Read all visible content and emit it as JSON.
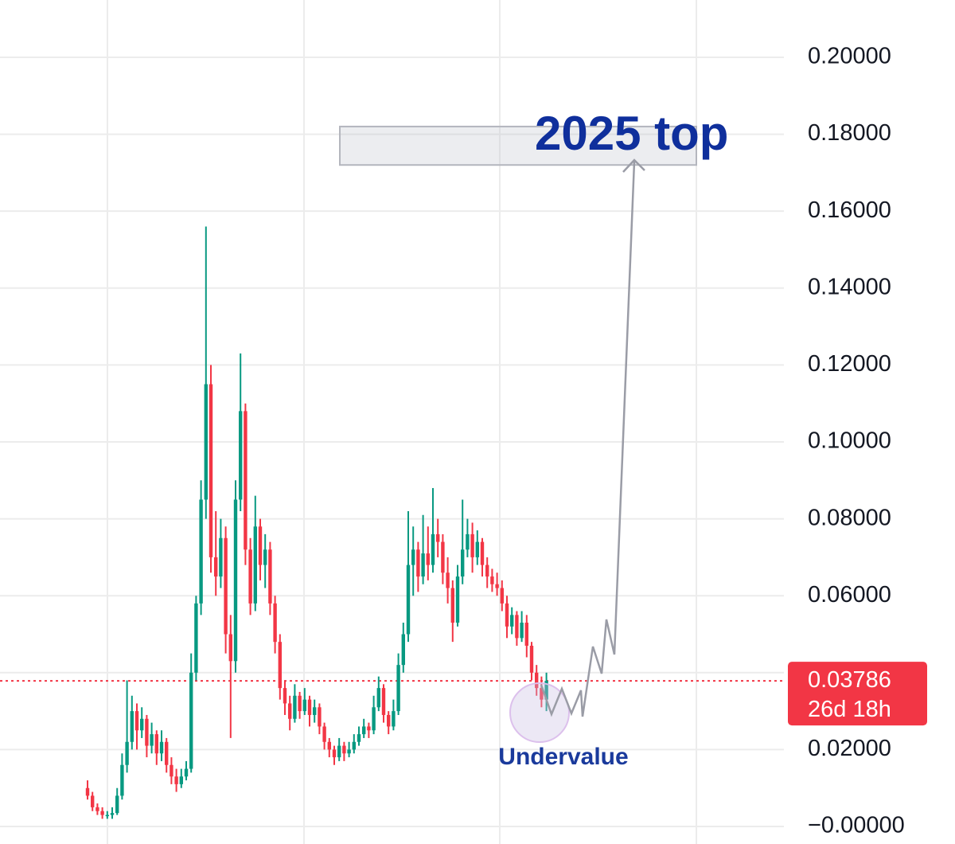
{
  "chart_data": {
    "type": "candlestick",
    "candles": [
      [
        0.01,
        0.012,
        0.007,
        0.008
      ],
      [
        0.008,
        0.009,
        0.004,
        0.005
      ],
      [
        0.005,
        0.006,
        0.003,
        0.004
      ],
      [
        0.004,
        0.005,
        0.002,
        0.003
      ],
      [
        0.003,
        0.004,
        0.002,
        0.003
      ],
      [
        0.003,
        0.005,
        0.002,
        0.0035
      ],
      [
        0.0035,
        0.01,
        0.003,
        0.008
      ],
      [
        0.008,
        0.019,
        0.007,
        0.016
      ],
      [
        0.016,
        0.038,
        0.014,
        0.022
      ],
      [
        0.022,
        0.034,
        0.02,
        0.03
      ],
      [
        0.03,
        0.032,
        0.02,
        0.025
      ],
      [
        0.025,
        0.031,
        0.023,
        0.028
      ],
      [
        0.028,
        0.029,
        0.018,
        0.021
      ],
      [
        0.021,
        0.027,
        0.019,
        0.024
      ],
      [
        0.024,
        0.025,
        0.016,
        0.019
      ],
      [
        0.019,
        0.025,
        0.017,
        0.022
      ],
      [
        0.022,
        0.023,
        0.014,
        0.016
      ],
      [
        0.016,
        0.018,
        0.011,
        0.013
      ],
      [
        0.013,
        0.015,
        0.009,
        0.011
      ],
      [
        0.011,
        0.015,
        0.01,
        0.013
      ],
      [
        0.013,
        0.017,
        0.012,
        0.015
      ],
      [
        0.015,
        0.045,
        0.014,
        0.04
      ],
      [
        0.04,
        0.06,
        0.038,
        0.058
      ],
      [
        0.058,
        0.09,
        0.055,
        0.085
      ],
      [
        0.085,
        0.156,
        0.08,
        0.115
      ],
      [
        0.115,
        0.12,
        0.066,
        0.07
      ],
      [
        0.07,
        0.082,
        0.06,
        0.065
      ],
      [
        0.065,
        0.08,
        0.062,
        0.075
      ],
      [
        0.075,
        0.078,
        0.045,
        0.05
      ],
      [
        0.05,
        0.055,
        0.023,
        0.043
      ],
      [
        0.043,
        0.09,
        0.04,
        0.085
      ],
      [
        0.085,
        0.123,
        0.082,
        0.108
      ],
      [
        0.108,
        0.11,
        0.068,
        0.072
      ],
      [
        0.072,
        0.075,
        0.055,
        0.058
      ],
      [
        0.058,
        0.086,
        0.056,
        0.078
      ],
      [
        0.078,
        0.08,
        0.064,
        0.068
      ],
      [
        0.068,
        0.076,
        0.062,
        0.072
      ],
      [
        0.072,
        0.074,
        0.055,
        0.058
      ],
      [
        0.058,
        0.06,
        0.045,
        0.048
      ],
      [
        0.048,
        0.05,
        0.033,
        0.036
      ],
      [
        0.036,
        0.038,
        0.029,
        0.032
      ],
      [
        0.032,
        0.034,
        0.025,
        0.028
      ],
      [
        0.028,
        0.037,
        0.027,
        0.034
      ],
      [
        0.034,
        0.035,
        0.028,
        0.03
      ],
      [
        0.03,
        0.036,
        0.029,
        0.033
      ],
      [
        0.033,
        0.034,
        0.026,
        0.029
      ],
      [
        0.029,
        0.033,
        0.027,
        0.031
      ],
      [
        0.031,
        0.032,
        0.024,
        0.026
      ],
      [
        0.026,
        0.027,
        0.02,
        0.022
      ],
      [
        0.022,
        0.023,
        0.018,
        0.02
      ],
      [
        0.02,
        0.021,
        0.016,
        0.018
      ],
      [
        0.018,
        0.023,
        0.017,
        0.021
      ],
      [
        0.021,
        0.022,
        0.017,
        0.019
      ],
      [
        0.019,
        0.022,
        0.018,
        0.02
      ],
      [
        0.02,
        0.024,
        0.019,
        0.022
      ],
      [
        0.022,
        0.026,
        0.021,
        0.024
      ],
      [
        0.024,
        0.028,
        0.023,
        0.026
      ],
      [
        0.026,
        0.027,
        0.023,
        0.025
      ],
      [
        0.025,
        0.034,
        0.024,
        0.031
      ],
      [
        0.031,
        0.039,
        0.03,
        0.036
      ],
      [
        0.036,
        0.037,
        0.027,
        0.029
      ],
      [
        0.029,
        0.03,
        0.024,
        0.026
      ],
      [
        0.026,
        0.033,
        0.025,
        0.03
      ],
      [
        0.03,
        0.045,
        0.029,
        0.042
      ],
      [
        0.042,
        0.053,
        0.04,
        0.05
      ],
      [
        0.05,
        0.082,
        0.048,
        0.068
      ],
      [
        0.068,
        0.078,
        0.06,
        0.072
      ],
      [
        0.072,
        0.074,
        0.061,
        0.065
      ],
      [
        0.065,
        0.081,
        0.063,
        0.071
      ],
      [
        0.071,
        0.078,
        0.064,
        0.068
      ],
      [
        0.068,
        0.088,
        0.066,
        0.076
      ],
      [
        0.076,
        0.08,
        0.07,
        0.074
      ],
      [
        0.074,
        0.076,
        0.063,
        0.066
      ],
      [
        0.066,
        0.07,
        0.058,
        0.062
      ],
      [
        0.062,
        0.064,
        0.048,
        0.053
      ],
      [
        0.053,
        0.068,
        0.052,
        0.065
      ],
      [
        0.065,
        0.085,
        0.063,
        0.072
      ],
      [
        0.072,
        0.08,
        0.07,
        0.076
      ],
      [
        0.076,
        0.079,
        0.066,
        0.07
      ],
      [
        0.07,
        0.077,
        0.068,
        0.074
      ],
      [
        0.074,
        0.075,
        0.065,
        0.068
      ],
      [
        0.068,
        0.07,
        0.062,
        0.065
      ],
      [
        0.065,
        0.067,
        0.061,
        0.063
      ],
      [
        0.063,
        0.066,
        0.06,
        0.062
      ],
      [
        0.062,
        0.064,
        0.056,
        0.058
      ],
      [
        0.058,
        0.06,
        0.049,
        0.052
      ],
      [
        0.052,
        0.057,
        0.05,
        0.055
      ],
      [
        0.055,
        0.056,
        0.047,
        0.049
      ],
      [
        0.049,
        0.056,
        0.048,
        0.053
      ],
      [
        0.053,
        0.055,
        0.044,
        0.047
      ],
      [
        0.047,
        0.048,
        0.038,
        0.04
      ],
      [
        0.04,
        0.042,
        0.034,
        0.036
      ],
      [
        0.036,
        0.039,
        0.031,
        0.033
      ],
      [
        0.033,
        0.04,
        0.03,
        0.03786
      ]
    ],
    "up_color": "#089981",
    "down_color": "#f23645",
    "ylim": [
      -0.00455,
      0.2149
    ],
    "yticks": [
      {
        "value": 0,
        "label": "−0.00000"
      },
      {
        "value": 0.02,
        "label": "0.02000"
      },
      {
        "value": 0.04,
        "label": "0.04000"
      },
      {
        "value": 0.06,
        "label": "0.06000"
      },
      {
        "value": 0.08,
        "label": "0.08000"
      },
      {
        "value": 0.1,
        "label": "0.10000"
      },
      {
        "value": 0.12,
        "label": "0.12000"
      },
      {
        "value": 0.14,
        "label": "0.14000"
      },
      {
        "value": 0.16,
        "label": "0.16000"
      },
      {
        "value": 0.18,
        "label": "0.18000"
      },
      {
        "value": 0.2,
        "label": "0.20000"
      }
    ],
    "grid": true,
    "last_price": 0.03786,
    "countdown": "26d 18h",
    "target_zone": [
      0.172,
      0.182
    ],
    "annotations": {
      "target_label": "2025 top",
      "circle_label": "Undervalue"
    }
  }
}
